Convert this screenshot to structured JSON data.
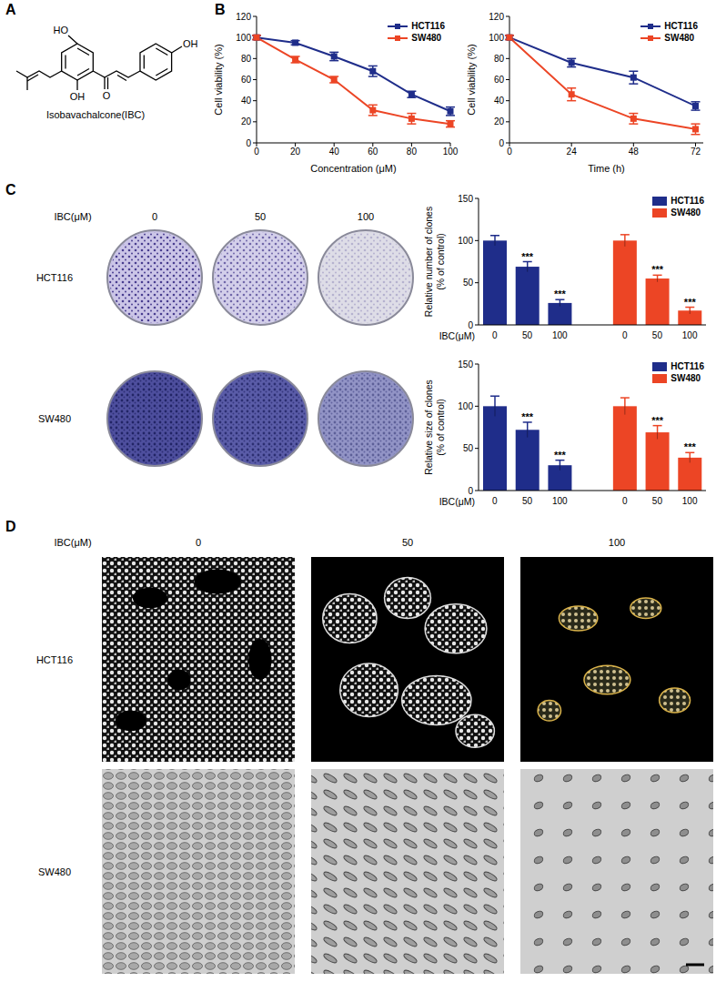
{
  "panels": {
    "A": {
      "letter": "A",
      "structure_labels": [
        "HO",
        "OH",
        "O",
        "OH"
      ],
      "compound": "Isobavachalcone(IBC)"
    },
    "B": {
      "letter": "B"
    },
    "C": {
      "letter": "C",
      "dose_label": "IBC(μM)",
      "doses": [
        "0",
        "50",
        "100"
      ],
      "cell_lines": [
        "HCT116",
        "SW480"
      ]
    },
    "D": {
      "letter": "D",
      "dose_label": "IBC(μM)",
      "doses": [
        "0",
        "50",
        "100"
      ],
      "cell_lines": [
        "HCT116",
        "SW480"
      ]
    }
  },
  "chart_data": [
    {
      "type": "line",
      "x_label": "Concentration (μM)",
      "y_label": "Cell viability (%)",
      "x": [
        0,
        20,
        40,
        60,
        80,
        100
      ],
      "xlim": [
        0,
        100
      ],
      "xticks": [
        0,
        20,
        40,
        60,
        80,
        100
      ],
      "ylim": [
        0,
        120
      ],
      "yticks": [
        0,
        20,
        40,
        60,
        80,
        100,
        120
      ],
      "legend": "upper right",
      "series": [
        {
          "name": "HCT116",
          "color": "#1f2d8a",
          "marker": "square",
          "values": [
            100,
            95,
            82,
            68,
            46,
            30
          ],
          "errors": [
            2,
            2,
            4,
            5,
            3,
            4
          ]
        },
        {
          "name": "SW480",
          "color": "#ec4525",
          "marker": "square",
          "values": [
            100,
            79,
            60,
            31,
            23,
            18
          ],
          "errors": [
            2,
            3,
            3,
            5,
            5,
            3
          ]
        }
      ]
    },
    {
      "type": "line",
      "x_label": "Time (h)",
      "y_label": "Cell viability (%)",
      "x": [
        0,
        24,
        48,
        72
      ],
      "xlim": [
        0,
        75
      ],
      "xticks": [
        0,
        24,
        48,
        72
      ],
      "ylim": [
        0,
        120
      ],
      "yticks": [
        0,
        20,
        40,
        60,
        80,
        100,
        120
      ],
      "legend": "upper right",
      "series": [
        {
          "name": "HCT116",
          "color": "#1f2d8a",
          "marker": "square",
          "values": [
            100,
            76,
            62,
            35
          ],
          "errors": [
            2,
            4,
            6,
            4
          ]
        },
        {
          "name": "SW480",
          "color": "#ec4525",
          "marker": "square",
          "values": [
            100,
            46,
            23,
            13
          ],
          "errors": [
            2,
            6,
            5,
            5
          ]
        }
      ]
    },
    {
      "type": "bar",
      "y_label": [
        "Relative number of clones",
        "(% of control)"
      ],
      "x_label": "IBC(μM)",
      "categories": [
        "0",
        "50",
        "100",
        null,
        "0",
        "50",
        "100"
      ],
      "ylim": [
        0,
        150
      ],
      "yticks": [
        0,
        50,
        100,
        150
      ],
      "legend": "upper right",
      "series": [
        {
          "name": "HCT116",
          "color": "#1f2d8a",
          "values": [
            100,
            69,
            26,
            null,
            null,
            null,
            null
          ],
          "errors": [
            6,
            6,
            4,
            null,
            null,
            null,
            null
          ],
          "significance": [
            null,
            "***",
            "***",
            null,
            null,
            null,
            null
          ]
        },
        {
          "name": "SW480",
          "color": "#ec4525",
          "values": [
            null,
            null,
            null,
            null,
            100,
            55,
            17
          ],
          "errors": [
            null,
            null,
            null,
            null,
            7,
            4,
            4
          ],
          "significance": [
            null,
            null,
            null,
            null,
            null,
            "***",
            "***"
          ]
        }
      ]
    },
    {
      "type": "bar",
      "y_label": [
        "Relative size of clones",
        "(% of control)"
      ],
      "x_label": "IBC(μM)",
      "categories": [
        "0",
        "50",
        "100",
        null,
        "0",
        "50",
        "100"
      ],
      "ylim": [
        0,
        150
      ],
      "yticks": [
        0,
        50,
        100,
        150
      ],
      "legend": "upper right",
      "series": [
        {
          "name": "HCT116",
          "color": "#1f2d8a",
          "values": [
            100,
            72,
            30,
            null,
            null,
            null,
            null
          ],
          "errors": [
            12,
            9,
            6,
            null,
            null,
            null,
            null
          ],
          "significance": [
            null,
            "***",
            "***",
            null,
            null,
            null,
            null
          ]
        },
        {
          "name": "SW480",
          "color": "#ec4525",
          "values": [
            null,
            null,
            null,
            null,
            100,
            69,
            39
          ],
          "errors": [
            null,
            null,
            null,
            null,
            10,
            8,
            6
          ],
          "significance": [
            null,
            null,
            null,
            null,
            null,
            "***",
            "***"
          ]
        }
      ]
    }
  ]
}
